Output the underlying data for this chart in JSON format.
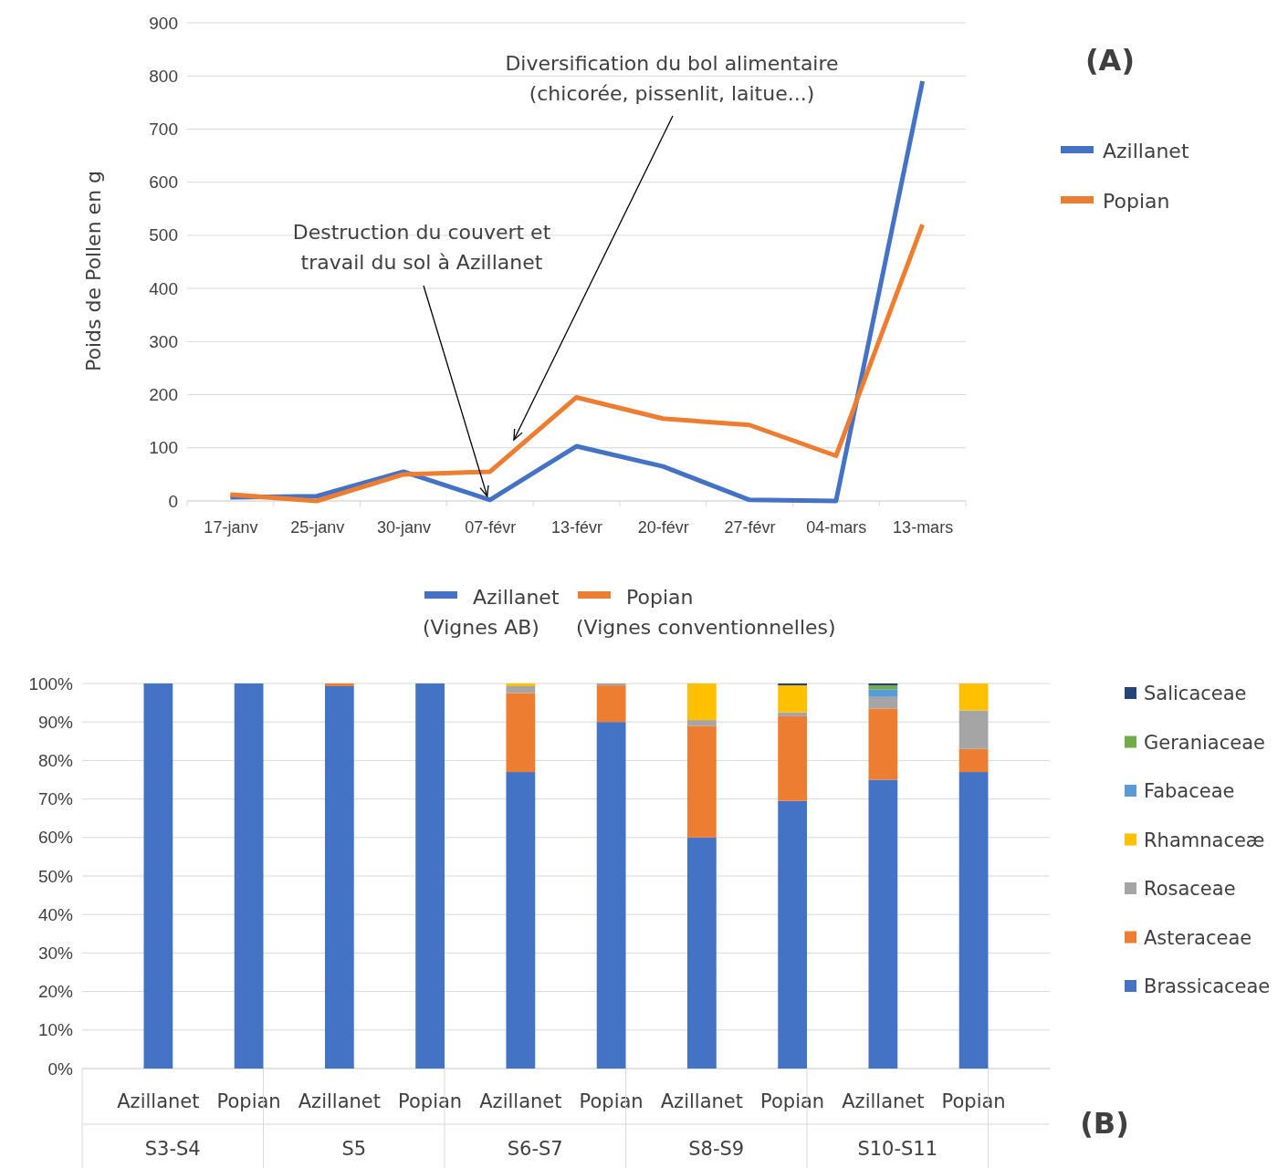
{
  "chart_data": [
    {
      "type": "line",
      "ylabel": "Poids de Pollen en g",
      "categories": [
        "17-janv",
        "25-janv",
        "30-janv",
        "07-févr",
        "13-févr",
        "20-févr",
        "27-févr",
        "04-mars",
        "13-mars"
      ],
      "series": [
        {
          "name": "Azillanet",
          "color": "#4472c4",
          "values": [
            7,
            9,
            55,
            2,
            103,
            65,
            2,
            0,
            790
          ]
        },
        {
          "name": "Popian",
          "color": "#ed7d31",
          "values": [
            12,
            0,
            50,
            55,
            195,
            155,
            143,
            85,
            520
          ]
        }
      ],
      "ylim": [
        0,
        900
      ],
      "yticks": [
        0,
        100,
        200,
        300,
        400,
        500,
        600,
        700,
        800,
        900
      ],
      "grid": "y",
      "legend": "right",
      "marker": "none",
      "line_style": "solid",
      "annotations": [
        {
          "text": "Destruction du couvert et\ntravail du sol à Azillanet",
          "x": "07-févr",
          "y": 2
        },
        "Diversification du bol alimentaire\n(chicorée, pissenlit, laitue...)",
        "(A)",
        "(Vignes AB)",
        "(Vignes conventionnelles)"
      ]
    },
    {
      "type": "bar",
      "stacked": true,
      "categories": [
        "Azillanet",
        "Popian",
        "Azillanet",
        "Popian",
        "Azillanet",
        "Popian",
        "Azillanet",
        "Popian",
        "Azillanet",
        "Popian"
      ],
      "series": [
        {
          "name": "Brassicaceae",
          "color": "#4472c4",
          "values": [
            100,
            100,
            99.3,
            100,
            77,
            90,
            60,
            69.5,
            75,
            77
          ]
        },
        {
          "name": "Asteraceae",
          "color": "#ed7d31",
          "values": [
            0,
            0,
            0.7,
            0,
            20.5,
            9.5,
            29,
            22,
            18.5,
            6
          ]
        },
        {
          "name": "Rosaceae",
          "color": "#a5a5a5",
          "values": [
            0,
            0,
            0,
            0,
            1.8,
            0.5,
            1.5,
            1,
            3,
            10
          ]
        },
        {
          "name": "Rhamnaceæ",
          "color": "#ffc000",
          "values": [
            0,
            0,
            0,
            0,
            0.7,
            0,
            9.5,
            7,
            0,
            7
          ]
        },
        {
          "name": "Fabaceae",
          "color": "#5b9bd5",
          "values": [
            0,
            0,
            0,
            0,
            0,
            0,
            0,
            0,
            2,
            0
          ]
        },
        {
          "name": "Geraniaceae",
          "color": "#70ad47",
          "values": [
            0,
            0,
            0,
            0,
            0,
            0,
            0,
            0,
            1,
            0
          ]
        },
        {
          "name": "Salicaceae",
          "color": "#264478",
          "values": [
            0,
            0,
            0,
            0,
            0,
            0,
            0,
            0.5,
            0.5,
            0
          ]
        }
      ],
      "ylim": [
        0,
        100
      ],
      "yticks": [
        {
          "value": 0,
          "label": "0%"
        },
        {
          "value": 10,
          "label": "10%"
        },
        {
          "value": 20,
          "label": "20%"
        },
        {
          "value": 30,
          "label": "30%"
        },
        {
          "value": 40,
          "label": "40%"
        },
        {
          "value": 50,
          "label": "50%"
        },
        {
          "value": 60,
          "label": "60%"
        },
        {
          "value": 70,
          "label": "70%"
        },
        {
          "value": 80,
          "label": "80%"
        },
        {
          "value": 90,
          "label": "90%"
        },
        {
          "value": 100,
          "label": "100%"
        }
      ],
      "grid": "y",
      "legend": "right",
      "annotations": [
        "S3-S4",
        "S5",
        "S6-S7",
        "S8-S9",
        "S10-S11",
        "(B)"
      ]
    }
  ]
}
